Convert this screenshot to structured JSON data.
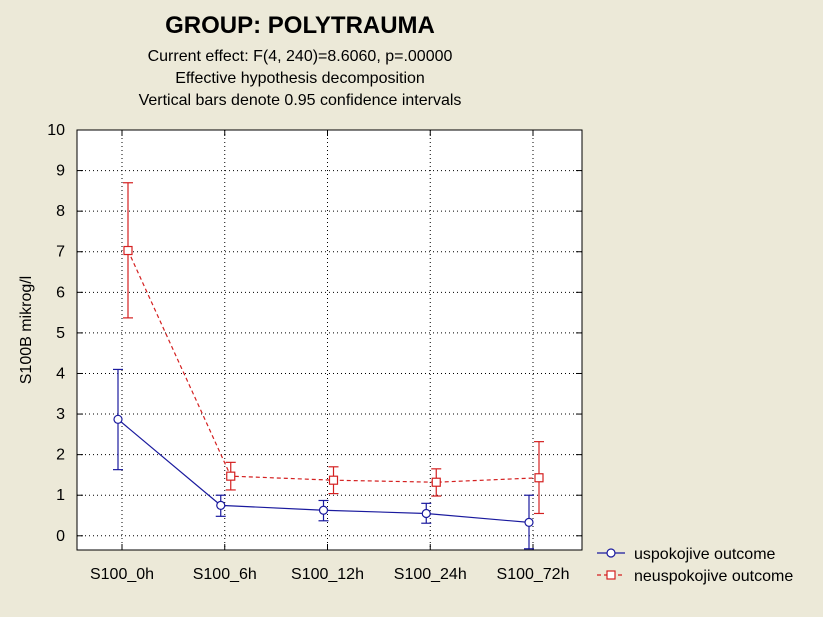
{
  "chart_data": {
    "type": "line",
    "title": "GROUP: POLYTRAUMA",
    "subtitles": [
      "Current effect: F(4, 240)=8.6060, p=.00000",
      "Effective hypothesis decomposition",
      "Vertical bars denote 0.95 confidence intervals"
    ],
    "xlabel": "",
    "ylabel": "S100B mikrog/l",
    "ylim": [
      -0.35,
      10
    ],
    "yticks": [
      0,
      1,
      2,
      3,
      4,
      5,
      6,
      7,
      8,
      9,
      10
    ],
    "grid": true,
    "legend_position": "bottom-right, outside plot",
    "categories": [
      "S100_0h",
      "S100_6h",
      "S100_12h",
      "S100_24h",
      "S100_72h"
    ],
    "series": [
      {
        "name": "uspokojive outcome",
        "color": "#1a1a9e",
        "line_style": "solid",
        "marker": "circle",
        "values": [
          2.87,
          0.75,
          0.63,
          0.55,
          0.33
        ],
        "ci_low": [
          1.63,
          0.48,
          0.37,
          0.31,
          -0.32
        ],
        "ci_high": [
          4.1,
          1.0,
          0.87,
          0.8,
          1.0
        ]
      },
      {
        "name": "neuspokojive outcome",
        "color": "#d42020",
        "line_style": "dashed",
        "marker": "square",
        "values": [
          7.03,
          1.47,
          1.37,
          1.32,
          1.43
        ],
        "ci_low": [
          5.37,
          1.13,
          1.04,
          0.98,
          0.55
        ],
        "ci_high": [
          8.7,
          1.81,
          1.7,
          1.65,
          2.32
        ]
      }
    ]
  }
}
